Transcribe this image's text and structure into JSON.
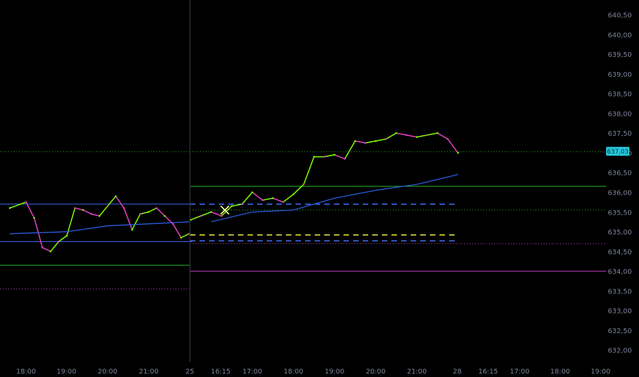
{
  "chart_data": {
    "type": "line",
    "title": "",
    "price_range": [
      631.7,
      640.7
    ],
    "y_ticks": [
      "632,00",
      "632,50",
      "633,00",
      "633,50",
      "634,00",
      "634,50",
      "635,00",
      "635,50",
      "636,00",
      "636,50",
      "637,00",
      "637,50",
      "638,00",
      "638,50",
      "639,00",
      "639,50",
      "640,00",
      "640,50"
    ],
    "x_ticks": [
      "18:00",
      "19:00",
      "20:00",
      "21:00",
      "25",
      "16:15",
      "17:00",
      "18:00",
      "19:00",
      "20:00",
      "21:00",
      "28",
      "16:15",
      "17:00",
      "18:00",
      "19:00"
    ],
    "session_break_after_index": 3,
    "last_price": "637,03",
    "last_price_value": 637.03,
    "colors": {
      "background": "#000000",
      "bar_up": "#7CFC00",
      "bar_down": "#E040C0",
      "vwap": "#2A5FE0",
      "level_green": "#22C322",
      "level_blue": "#3A6BF0",
      "level_yellow": "#E8E83A",
      "level_magenta": "#C040C0",
      "marker": "#FFFF99",
      "last_price_badge": "#26C6DA",
      "axis_text": "#7C8598",
      "crosshair": "#3A3F4A"
    },
    "series": [
      {
        "kind": "price",
        "segments": [
          {
            "session": 1,
            "x": [
              "17:36",
              "18:00",
              "18:12",
              "18:24",
              "18:36",
              "18:48",
              "19:00",
              "19:12",
              "19:24",
              "19:36",
              "19:48",
              "20:00",
              "20:12",
              "20:24",
              "20:36",
              "20:48",
              "21:00",
              "21:12",
              "21:24",
              "21:36",
              "21:48",
              "22:00"
            ],
            "y": [
              635.6,
              635.75,
              635.35,
              634.6,
              634.5,
              634.75,
              634.9,
              635.6,
              635.55,
              635.45,
              635.4,
              635.65,
              635.9,
              635.6,
              635.05,
              635.45,
              635.5,
              635.6,
              635.4,
              635.2,
              634.85,
              634.95
            ]
          },
          {
            "session": 2,
            "x": [
              "15:30",
              "15:45",
              "16:00",
              "16:15",
              "16:30",
              "16:45",
              "17:00",
              "17:15",
              "17:30",
              "17:45",
              "18:00",
              "18:15",
              "18:30",
              "18:45",
              "19:00",
              "19:15",
              "19:30",
              "19:45",
              "20:00",
              "20:15",
              "20:30",
              "20:45",
              "21:00",
              "21:15",
              "21:30",
              "21:45",
              "22:00"
            ],
            "y": [
              635.3,
              635.4,
              635.5,
              635.4,
              635.65,
              635.7,
              636.0,
              635.8,
              635.85,
              635.75,
              635.95,
              636.2,
              636.9,
              636.9,
              636.95,
              636.85,
              637.3,
              637.25,
              637.3,
              637.35,
              637.5,
              637.45,
              637.4,
              637.45,
              637.5,
              637.35,
              637.0
            ]
          }
        ]
      },
      {
        "kind": "vwap",
        "name": "",
        "segments": [
          {
            "session": 1,
            "x": [
              "17:36",
              "19:00",
              "20:00",
              "21:00",
              "22:00"
            ],
            "y": [
              634.95,
              635.0,
              635.15,
              635.2,
              635.25
            ]
          },
          {
            "session": 2,
            "x": [
              "16:00",
              "17:00",
              "18:00",
              "19:00",
              "20:00",
              "21:00",
              "22:00"
            ],
            "y": [
              635.25,
              635.5,
              635.55,
              635.85,
              636.05,
              636.2,
              636.45
            ]
          }
        ]
      }
    ],
    "levels": [
      {
        "y": 635.7,
        "color": "level_blue",
        "style": "solid",
        "span": "session1"
      },
      {
        "y": 634.75,
        "color": "level_blue",
        "style": "solid",
        "span": "session1"
      },
      {
        "y": 634.15,
        "color": "level_green",
        "style": "solid",
        "span": "session1"
      },
      {
        "y": 633.55,
        "color": "level_magenta",
        "style": "dotted",
        "span": "session1"
      },
      {
        "y": 636.15,
        "color": "level_green",
        "style": "solid",
        "span": "session2"
      },
      {
        "y": 635.7,
        "color": "level_blue",
        "style": "dashed",
        "span": "session2"
      },
      {
        "y": 634.92,
        "color": "level_yellow",
        "style": "dashed",
        "span": "session2"
      },
      {
        "y": 634.77,
        "color": "level_blue",
        "style": "dashed",
        "span": "session2"
      },
      {
        "y": 634.0,
        "color": "level_magenta",
        "style": "solid",
        "span": "session2"
      },
      {
        "y": 635.55,
        "color": "level_green",
        "style": "dotted",
        "span": "session2"
      },
      {
        "y": 634.7,
        "color": "level_magenta",
        "style": "dotted",
        "span": "session2"
      },
      {
        "y": 637.03,
        "color": "level_green",
        "style": "dotted",
        "span": "all"
      }
    ],
    "markers": [
      {
        "type": "x-marker",
        "x": "16:45",
        "session": 2,
        "y": 635.6
      }
    ],
    "grid": false,
    "legend": "none"
  }
}
